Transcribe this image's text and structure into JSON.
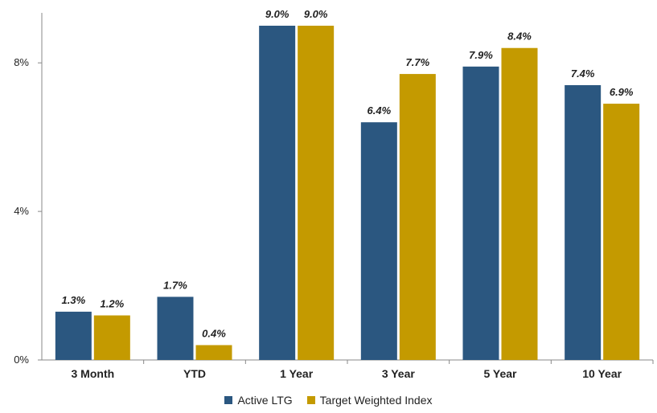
{
  "colors": {
    "active": "#2b5780",
    "target": "#c49a00",
    "axis": "#888888"
  },
  "chart_data": {
    "type": "bar",
    "categories": [
      "3 Month",
      "YTD",
      "1 Year",
      "3 Year",
      "5 Year",
      "10 Year"
    ],
    "series": [
      {
        "name": "Active LTG",
        "values": [
          1.3,
          1.7,
          9.0,
          6.4,
          7.9,
          7.4
        ],
        "labels": [
          "1.3%",
          "1.7%",
          "9.0%",
          "6.4%",
          "7.9%",
          "7.4%"
        ]
      },
      {
        "name": "Target Weighted Index",
        "values": [
          1.2,
          0.4,
          9.0,
          7.7,
          8.4,
          6.9
        ],
        "labels": [
          "1.2%",
          "0.4%",
          "9.0%",
          "7.7%",
          "8.4%",
          "6.9%"
        ]
      }
    ],
    "yticks": [
      0,
      4,
      8
    ],
    "ytick_labels": [
      "0%",
      "4%",
      "8%"
    ],
    "ylim": [
      0,
      9.6
    ],
    "grid": false,
    "legend_position": "bottom",
    "title": "",
    "xlabel": "",
    "ylabel": ""
  }
}
